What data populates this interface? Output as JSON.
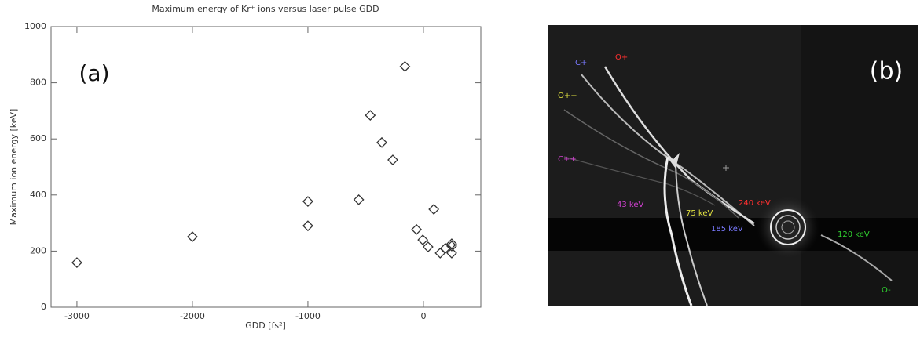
{
  "chart_data": {
    "type": "scatter",
    "title": "Maximum energy of Kr⁺ ions versus laser pulse GDD",
    "panel_label": "(a)",
    "x_label": "GDD [fs²]",
    "y_label": "Maximum ion energy [keV]",
    "x": [
      -3000,
      -2000,
      -1000,
      -1000,
      -560,
      -460,
      -360,
      -265,
      -160,
      -60,
      -5,
      40,
      90,
      145,
      190,
      245,
      245,
      245
    ],
    "values": [
      159,
      251,
      377,
      290,
      383,
      684,
      587,
      525,
      858,
      277,
      240,
      215,
      349,
      193,
      210,
      226,
      193,
      218
    ],
    "marker_color": "#333333",
    "xlim": [
      -3224,
      497
    ],
    "xticks": [
      -3000,
      -2000,
      -1000,
      0
    ],
    "ylim": [
      0,
      1000
    ],
    "yticks": [
      0,
      200,
      400,
      600,
      800,
      1000
    ]
  },
  "image_panel": {
    "label": "(b)",
    "annotations": [
      {
        "text": "C+",
        "color": "#7a7aff"
      },
      {
        "text": "O+",
        "color": "#ff3030"
      },
      {
        "text": "O++",
        "color": "#e0e040"
      },
      {
        "text": "C++",
        "color": "#d040d0"
      },
      {
        "text": "43 keV",
        "color": "#d040d0"
      },
      {
        "text": "75 keV",
        "color": "#e0e040"
      },
      {
        "text": "240 keV",
        "color": "#ff3030"
      },
      {
        "text": "185 keV",
        "color": "#7a7aff"
      },
      {
        "text": "120 keV",
        "color": "#30d030"
      },
      {
        "text": "O-",
        "color": "#30d030"
      }
    ]
  }
}
